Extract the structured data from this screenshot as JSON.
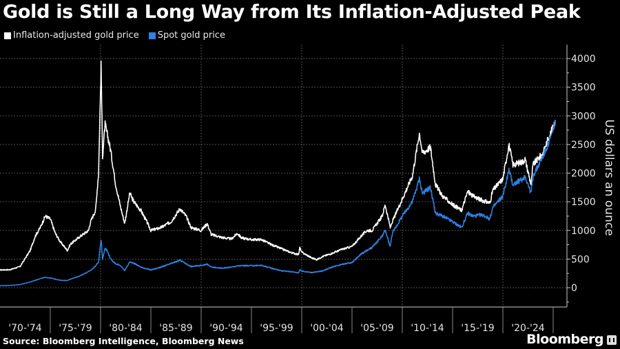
{
  "header": {
    "title": "Gold is Still a Long Way from Its Inflation-Adjusted Peak"
  },
  "legend": [
    {
      "label": "Inflation-adjusted gold price",
      "color": "#ffffff"
    },
    {
      "label": "Spot gold price",
      "color": "#2f80e0"
    }
  ],
  "footer": {
    "source": "Source: Bloomberg Intelligence, Bloomberg News",
    "brand": "Bloomberg"
  },
  "chart_data": {
    "type": "line",
    "title": "Gold is Still a Long Way from Its Inflation-Adjusted Peak",
    "xlabel": "",
    "ylabel": "US dollars an ounce",
    "xlim": [
      1970,
      2025.3
    ],
    "ylim": [
      -500,
      4200
    ],
    "grid": true,
    "legend_position": "top-left",
    "y_axis_side": "right",
    "yticks": [
      0,
      500,
      1000,
      1500,
      2000,
      2500,
      3000,
      3500,
      4000
    ],
    "x_category_labels": [
      "'70-'74",
      "'75-'79",
      "'80-'84",
      "'85-'89",
      "'90-'94",
      "'95-'99",
      "'00-'04",
      "'05-'09",
      "'10-'14",
      "'15-'19",
      "'20-'24"
    ],
    "x_category_starts": [
      1970,
      1975,
      1980,
      1985,
      1990,
      1995,
      2000,
      2005,
      2010,
      2015,
      2020,
      2025
    ],
    "series": [
      {
        "name": "Inflation-adjusted gold price",
        "color": "#ffffff",
        "x": [
          1970,
          1971,
          1972,
          1973,
          1973.5,
          1974,
          1974.5,
          1975,
          1975.5,
          1976,
          1976.7,
          1977,
          1978,
          1978.8,
          1979,
          1979.5,
          1979.8,
          1980.05,
          1980.2,
          1980.45,
          1980.7,
          1981,
          1981.5,
          1982,
          1982.4,
          1982.9,
          1983.3,
          1984,
          1984.6,
          1985,
          1986,
          1987,
          1987.9,
          1988.5,
          1989,
          1990,
          1990.6,
          1991,
          1992,
          1993,
          1993.6,
          1994,
          1995,
          1996,
          1997,
          1998,
          1999,
          1999.7,
          1999.8,
          2000,
          2001,
          2001.5,
          2002,
          2003,
          2004,
          2005,
          2006,
          2006.5,
          2007,
          2008,
          2008.3,
          2008.8,
          2009,
          2010,
          2011,
          2011.7,
          2012,
          2012.8,
          2013.3,
          2014,
          2015,
          2015.9,
          2016.5,
          2017,
          2018,
          2018.7,
          2019,
          2020,
          2020.6,
          2021,
          2022,
          2022.2,
          2022.8,
          2023,
          2024,
          2024.5,
          2025,
          2025.2
        ],
        "y": [
          310,
          315,
          370,
          650,
          900,
          1050,
          1250,
          1200,
          950,
          800,
          650,
          760,
          900,
          1000,
          1150,
          1350,
          2000,
          3870,
          2300,
          2850,
          2650,
          2400,
          1800,
          1400,
          1120,
          1650,
          1500,
          1350,
          1150,
          1000,
          1050,
          1150,
          1380,
          1250,
          1050,
          1000,
          1120,
          930,
          880,
          850,
          950,
          870,
          840,
          840,
          750,
          680,
          610,
          580,
          700,
          620,
          520,
          490,
          540,
          600,
          670,
          720,
          920,
          1000,
          1000,
          1250,
          1450,
          1050,
          1150,
          1550,
          1950,
          2700,
          2350,
          2450,
          1800,
          1600,
          1450,
          1350,
          1680,
          1600,
          1520,
          1480,
          1700,
          1900,
          2500,
          2150,
          2200,
          2250,
          1800,
          2150,
          2350,
          2600,
          2800,
          2930
        ]
      },
      {
        "name": "Spot gold price",
        "color": "#2f80e0",
        "x": [
          1970,
          1971,
          1972,
          1973,
          1974,
          1974.5,
          1975,
          1976,
          1976.7,
          1977,
          1978,
          1979,
          1979.5,
          1979.8,
          1980.05,
          1980.2,
          1980.45,
          1980.7,
          1981,
          1981.5,
          1982,
          1982.4,
          1982.9,
          1983.3,
          1984,
          1985,
          1986,
          1987,
          1987.9,
          1988.5,
          1989,
          1990,
          1990.6,
          1991,
          1992,
          1993,
          1993.6,
          1994,
          1995,
          1996,
          1997,
          1998,
          1999,
          1999.7,
          1999.8,
          2000,
          2001,
          2002,
          2003,
          2004,
          2005,
          2006,
          2006.5,
          2007,
          2008,
          2008.3,
          2008.8,
          2009,
          2010,
          2011,
          2011.7,
          2012,
          2012.8,
          2013.3,
          2014,
          2015,
          2015.9,
          2016.5,
          2017,
          2018,
          2018.7,
          2019,
          2020,
          2020.6,
          2021,
          2022,
          2022.2,
          2022.8,
          2023,
          2024,
          2024.5,
          2025,
          2025.2
        ],
        "y": [
          35,
          40,
          55,
          100,
          160,
          180,
          170,
          130,
          125,
          150,
          210,
          300,
          380,
          450,
          850,
          500,
          700,
          630,
          500,
          420,
          380,
          300,
          450,
          430,
          360,
          310,
          360,
          420,
          480,
          420,
          370,
          390,
          410,
          360,
          340,
          360,
          380,
          385,
          385,
          390,
          340,
          295,
          280,
          260,
          320,
          290,
          265,
          290,
          360,
          410,
          440,
          600,
          650,
          700,
          900,
          1000,
          720,
          950,
          1250,
          1500,
          1900,
          1650,
          1750,
          1300,
          1250,
          1150,
          1050,
          1300,
          1250,
          1270,
          1200,
          1400,
          1600,
          2050,
          1800,
          1900,
          1950,
          1650,
          1950,
          2300,
          2500,
          2750,
          2930
        ]
      }
    ]
  }
}
